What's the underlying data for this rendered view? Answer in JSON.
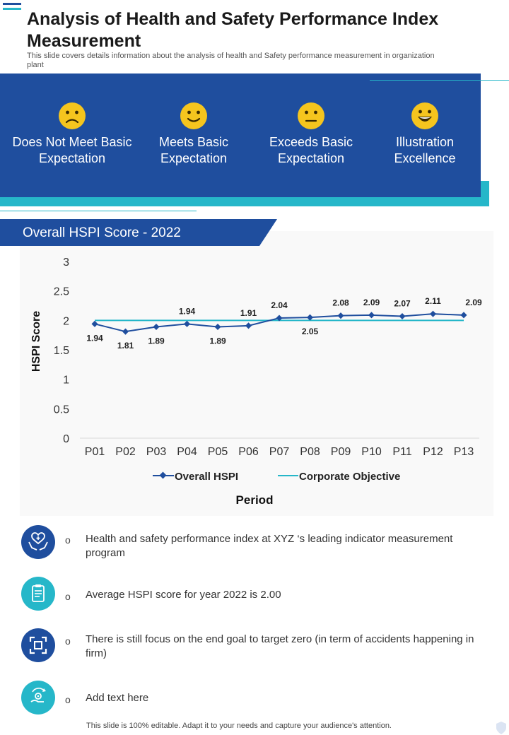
{
  "header": {
    "title": "Analysis of Health and Safety Performance Index Measurement",
    "subtitle": "This slide covers details information about the analysis of health and Safety  performance measurement in organization plant"
  },
  "levels": [
    {
      "label": "Does Not Meet Basic Expectation",
      "icon": "sad-face-icon"
    },
    {
      "label": "Meets Basic Expectation",
      "icon": "smile-face-icon"
    },
    {
      "label": "Exceeds Basic Expectation",
      "icon": "neutral-face-icon"
    },
    {
      "label": "Illustration Excellence",
      "icon": "grin-face-icon"
    }
  ],
  "chart_header": "Overall HSPI Score - 2022",
  "chart_data": {
    "type": "line",
    "categories": [
      "P01",
      "P02",
      "P03",
      "P04",
      "P05",
      "P06",
      "P07",
      "P08",
      "P09",
      "P10",
      "P11",
      "P12",
      "P13"
    ],
    "series": [
      {
        "name": "Overall HSPI",
        "values": [
          1.94,
          1.81,
          1.89,
          1.94,
          1.89,
          1.91,
          2.04,
          2.05,
          2.08,
          2.09,
          2.07,
          2.11,
          2.09
        ],
        "labels": [
          "1.94",
          "1.81",
          "1.89",
          "1.94",
          "1.89",
          "1.91",
          "2.04",
          "2.05",
          "2.08",
          "2.09",
          "2.07",
          "2.11",
          "2.09"
        ],
        "color": "#1f4e9e"
      },
      {
        "name": "Corporate Objective",
        "values": [
          2,
          2,
          2,
          2,
          2,
          2,
          2,
          2,
          2,
          2,
          2,
          2,
          2
        ],
        "color": "#26b7c9"
      }
    ],
    "xlabel": "Period",
    "ylabel": "HSPI Score",
    "ylim": [
      0,
      3
    ],
    "yticks": [
      "0",
      "0.5",
      "1",
      "1.5",
      "2",
      "2.5",
      "3"
    ]
  },
  "points": [
    {
      "text": "Health and safety performance index at XYZ  ‘s leading indicator measurement program",
      "icon": "heart-hands-icon"
    },
    {
      "text": "Average HSPI score for year 2022 is 2.00",
      "icon": "clipboard-icon"
    },
    {
      "text": "There is still focus on the end goal to target zero (in term of accidents happening in firm)",
      "icon": "focus-target-icon"
    },
    {
      "text": "Add text here",
      "icon": "hand-gear-icon"
    }
  ],
  "bullet": "o",
  "footer": "This slide is 100% editable. Adapt it to your needs and capture your audience's attention.",
  "colors": {
    "navy": "#1f4e9e",
    "teal": "#26b7c9"
  }
}
